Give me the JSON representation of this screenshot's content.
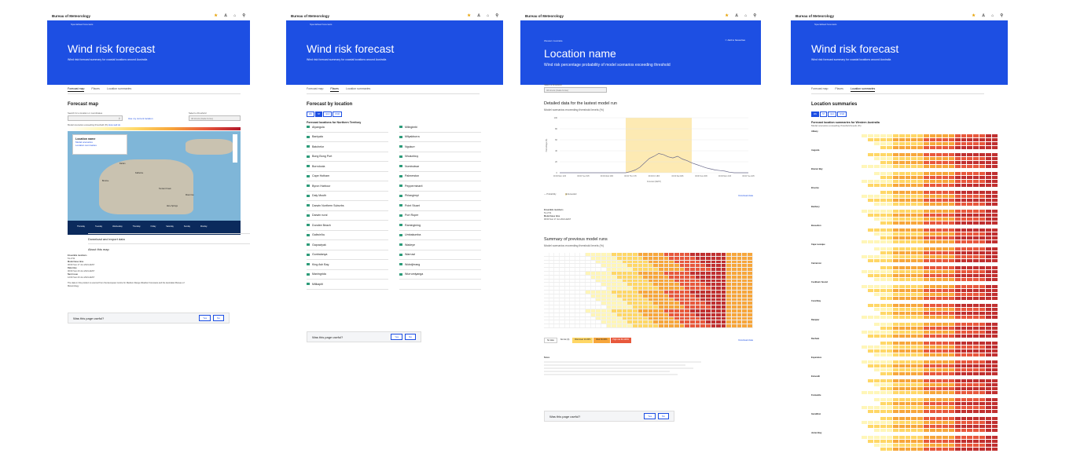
{
  "brand": "Bureau of Meteorology",
  "panel1": {
    "breadcrumb": "Specialised forecasts",
    "title": "Wind risk forecast",
    "subtitle": "Wind risk forecast summary for coastal locations around Australia",
    "tabs": [
      "Forecast map",
      "Places",
      "Location summaries"
    ],
    "heading": "Forecast map",
    "search_label": "Search for a location or coordinates",
    "use_location": "Use my current location",
    "threshold_label": "Select a threshold",
    "threshold_value": "34 knots (Gale force)",
    "scale_label": "Model scenarios exceeding threshold (%)",
    "scale_help": "How well do",
    "scale_ticks": [
      "0%",
      "10%",
      "20%",
      "30%",
      "40%",
      "50%",
      "60%",
      "70%",
      "80%",
      "90%",
      "100%"
    ],
    "popup_title": "Location name",
    "popup_link1": "Model scenarios",
    "popup_link2": "Location summaries",
    "map_labels": [
      "Darwin",
      "Katherine",
      "Tennant Creek",
      "Mount Isa",
      "Alice Springs",
      "Broome"
    ],
    "days": [
      "Thursday",
      "Tuesday",
      "Wednesday",
      "Thursday",
      "Friday",
      "Saturday",
      "Sunday",
      "Monday"
    ],
    "time_readout": "Thursday, 10 Jun 00:00am",
    "acc1": "Download and export data",
    "acc2": "About this map",
    "meta": [
      "Ensemble members",
      "51 of 51",
      "Model base time",
      "00:00 Sun 17 Jun 2021 AEST",
      "Data time",
      "00:00 Sun 20 Jun 2021 AEST",
      "Next issue",
      "12:00 Sun 20 Jun 2021 AEST"
    ],
    "about": "The data in this product is sourced from the European Centre for Medium Range Weather Forecasts and the Australian Bureau of Meteorology.",
    "feedback": "Was this page useful?",
    "yes": "Yes",
    "no": "No"
  },
  "panel2": {
    "breadcrumb": "Specialised forecasts",
    "title": "Wind risk forecast",
    "subtitle": "Wind risk forecast summary for coastal locations around Australia",
    "tabs": [
      "Forecast map",
      "Places",
      "Location summaries"
    ],
    "heading": "Forecast by location",
    "states": [
      "WA",
      "NT",
      "QLD",
      "NSW"
    ],
    "list_heading": "Forecast locations for Northern Territory",
    "left": [
      "Alyangula",
      "Baniyala",
      "Batchelor",
      "Bong Bong Port",
      "Borroloola",
      "Cape Hotham",
      "Byron Harbour",
      "Daly Mouth",
      "Darwin Northern Suburbs",
      "Darwin rural",
      "Dundee Beach",
      "Galiwin'ku",
      "Gapuwiyak",
      "Gunbalanya",
      "King Ash Bay",
      "Maningrida",
      "Milikapiti"
    ],
    "right": [
      "Milingimbi",
      "Milyakburra",
      "Ngukurr",
      "Nhulunbuy",
      "Numbulwar",
      "Palmerston",
      "Pepperminarti",
      "Pirlangimpi",
      "Point Stuart",
      "Port Roper",
      "Ramingining",
      "Umbakumba",
      "Wadeye",
      "Warruwi",
      "Wobdjirrang",
      "Wurrumiyanga"
    ],
    "feedback": "Was this page useful?",
    "yes": "Yes",
    "no": "No"
  },
  "panel3": {
    "breadcrumb": "Western Australia",
    "favourite": "Add to favourites",
    "title": "Location name",
    "subtitle": "Wind risk percentage probability of model scenarios exceeding threshold",
    "threshold_label": "Select a threshold",
    "threshold_value": "34 knots (Gale force)",
    "h_detail": "Detailed data for the lastest model run",
    "detail_sub": "Model scenarios exceeding threshold levels (%)",
    "ylabel": "Percentage (%)",
    "x_ticks": [
      "00:00 Mon 14/6",
      "00:00 Tue 15/6",
      "00:00 Wed 16/6",
      "00:00 Thu 17/6",
      "00:00 Fri 18/6",
      "00:00 Sat 19/6",
      "00:00 Sun 20/6",
      "00:00 Mon 21/6",
      "00:00 Tue 22/6"
    ],
    "xlabel": "Forecast (AEST)",
    "legend": [
      "Probability",
      "Exceeded"
    ],
    "download": "Download data",
    "meta": [
      "Ensemble members",
      "51 of 51",
      "Model base time",
      "00:00 Sun 17 Jun 2021 AEST"
    ],
    "h_summary": "Summary of previous model runs",
    "summary_sub": "Model scenarios exceeding threshold levels (%)",
    "scale": [
      "No data",
      "No risk (0)",
      "Risk level 10-30%",
      "Risk 30-60%",
      "High risk 60-100%"
    ],
    "notes_title": "Notes",
    "feedback": "Was this page useful?",
    "yes": "Yes",
    "no": "No",
    "chart_data": {
      "type": "line",
      "x": [
        0,
        1,
        2,
        3,
        4,
        5,
        6,
        7,
        8,
        9,
        10,
        11,
        12,
        13,
        14,
        15,
        16,
        17,
        18,
        19,
        20,
        21,
        22,
        23,
        24,
        25,
        26,
        27,
        28,
        29,
        30,
        31,
        32,
        33,
        34,
        35,
        36,
        37,
        38,
        39,
        40
      ],
      "y": [
        0,
        0,
        0,
        0,
        0,
        0,
        0,
        0,
        0,
        0,
        0,
        0,
        0,
        0,
        0,
        2,
        5,
        10,
        18,
        26,
        30,
        35,
        33,
        29,
        27,
        30,
        25,
        22,
        18,
        15,
        12,
        9,
        7,
        5,
        4,
        3,
        1,
        0,
        0,
        0,
        0
      ],
      "ylim": [
        0,
        100
      ],
      "y_ticks": [
        0,
        20,
        40,
        60,
        80,
        100
      ],
      "exceeded_range": [
        14,
        28
      ],
      "colors": {
        "line": "#6a6a8a",
        "shade": "#fdeab3"
      }
    }
  },
  "panel4": {
    "breadcrumb": "Specialised forecasts",
    "title": "Wind risk forecast",
    "subtitle": "Wind risk forecast summary for coastal locations around Australia",
    "tabs": [
      "Forecast map",
      "Places",
      "Location summaries"
    ],
    "heading": "Location summaries",
    "states": [
      "WA",
      "NT",
      "QLD",
      "NSW"
    ],
    "list_heading": "Forecast location summaries for Western Australia",
    "list_sub": "Model scenarios exceeding threshold levels (%)",
    "places": [
      "Albany",
      "Augusta",
      "Bremer Bay",
      "Broome",
      "Bunbury",
      "Busselton",
      "Cape Leveque",
      "Carnarvon",
      "Cockburn Sound",
      "Coral Bay",
      "Dampier",
      "Denham",
      "Esperance",
      "Exmouth",
      "Fremantle",
      "Geraldton",
      "Jurien Bay"
    ]
  }
}
